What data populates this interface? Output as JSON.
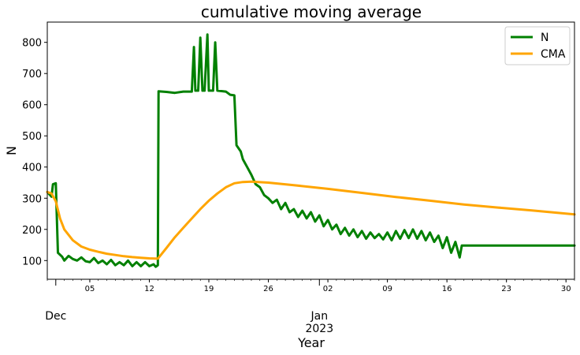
{
  "chart_data": {
    "type": "line",
    "title": "cumulative moving average",
    "xlabel": "Year",
    "ylabel": "N",
    "x_range": [
      "2022-11-30",
      "2023-01-31"
    ],
    "ylim": [
      40,
      865
    ],
    "grid": false,
    "legend_position": "top-right",
    "x_minor_ticks": [
      "05",
      "12",
      "19",
      "26",
      "02",
      "09",
      "16",
      "23",
      "30"
    ],
    "x_major_ticks": [
      {
        "line1": "Dec",
        "line2": ""
      },
      {
        "line1": "Jan",
        "line2": "2023"
      }
    ],
    "y_ticks": [
      "100",
      "200",
      "300",
      "400",
      "500",
      "600",
      "700",
      "800"
    ],
    "series": [
      {
        "name": "N",
        "color": "#008000",
        "points": [
          [
            "2022-11-30",
            320
          ],
          [
            "2022-11-30T12:00",
            305
          ],
          [
            "2022-11-30T16:00",
            345
          ],
          [
            "2022-12-01",
            348
          ],
          [
            "2022-12-01T06:00",
            125
          ],
          [
            "2022-12-01T18:00",
            112
          ],
          [
            "2022-12-02",
            100
          ],
          [
            "2022-12-02T12:00",
            115
          ],
          [
            "2022-12-03",
            105
          ],
          [
            "2022-12-03T12:00",
            100
          ],
          [
            "2022-12-04",
            110
          ],
          [
            "2022-12-04T12:00",
            98
          ],
          [
            "2022-12-05",
            95
          ],
          [
            "2022-12-05T12:00",
            108
          ],
          [
            "2022-12-06",
            92
          ],
          [
            "2022-12-06T12:00",
            100
          ],
          [
            "2022-12-07",
            88
          ],
          [
            "2022-12-07T12:00",
            102
          ],
          [
            "2022-12-08",
            85
          ],
          [
            "2022-12-08T12:00",
            95
          ],
          [
            "2022-12-09",
            85
          ],
          [
            "2022-12-09T12:00",
            100
          ],
          [
            "2022-12-10",
            82
          ],
          [
            "2022-12-10T12:00",
            95
          ],
          [
            "2022-12-11",
            82
          ],
          [
            "2022-12-11T12:00",
            95
          ],
          [
            "2022-12-12",
            82
          ],
          [
            "2022-12-12T12:00",
            88
          ],
          [
            "2022-12-12T18:00",
            80
          ],
          [
            "2022-12-13",
            85
          ],
          [
            "2022-12-13T02:00",
            643
          ],
          [
            "2022-12-14",
            641
          ],
          [
            "2022-12-15",
            638
          ],
          [
            "2022-12-16",
            642
          ],
          [
            "2022-12-17",
            642
          ],
          [
            "2022-12-17T06:00",
            785
          ],
          [
            "2022-12-17T10:00",
            645
          ],
          [
            "2022-12-17T18:00",
            645
          ],
          [
            "2022-12-18",
            815
          ],
          [
            "2022-12-18T06:00",
            645
          ],
          [
            "2022-12-18T12:00",
            645
          ],
          [
            "2022-12-18T20:00",
            825
          ],
          [
            "2022-12-19",
            645
          ],
          [
            "2022-12-19T12:00",
            645
          ],
          [
            "2022-12-19T18:00",
            800
          ],
          [
            "2022-12-20",
            645
          ],
          [
            "2022-12-21",
            642
          ],
          [
            "2022-12-21T12:00",
            632
          ],
          [
            "2022-12-22",
            630
          ],
          [
            "2022-12-22T06:00",
            470
          ],
          [
            "2022-12-22T18:00",
            450
          ],
          [
            "2022-12-23",
            425
          ],
          [
            "2022-12-23T12:00",
            400
          ],
          [
            "2022-12-24",
            375
          ],
          [
            "2022-12-24T12:00",
            345
          ],
          [
            "2022-12-25",
            335
          ],
          [
            "2022-12-25T12:00",
            310
          ],
          [
            "2022-12-26",
            300
          ],
          [
            "2022-12-26T12:00",
            285
          ],
          [
            "2022-12-27",
            295
          ],
          [
            "2022-12-27T12:00",
            265
          ],
          [
            "2022-12-28",
            285
          ],
          [
            "2022-12-28T12:00",
            255
          ],
          [
            "2022-12-29",
            265
          ],
          [
            "2022-12-29T12:00",
            240
          ],
          [
            "2022-12-30",
            260
          ],
          [
            "2022-12-30T12:00",
            235
          ],
          [
            "2022-12-31",
            255
          ],
          [
            "2022-12-31T12:00",
            225
          ],
          [
            "2023-01-01",
            245
          ],
          [
            "2023-01-01T12:00",
            210
          ],
          [
            "2023-01-02",
            230
          ],
          [
            "2023-01-02T12:00",
            200
          ],
          [
            "2023-01-03",
            215
          ],
          [
            "2023-01-03T12:00",
            185
          ],
          [
            "2023-01-04",
            205
          ],
          [
            "2023-01-04T12:00",
            180
          ],
          [
            "2023-01-05",
            200
          ],
          [
            "2023-01-05T12:00",
            175
          ],
          [
            "2023-01-06",
            195
          ],
          [
            "2023-01-06T12:00",
            170
          ],
          [
            "2023-01-07",
            190
          ],
          [
            "2023-01-07T12:00",
            172
          ],
          [
            "2023-01-08",
            185
          ],
          [
            "2023-01-08T12:00",
            168
          ],
          [
            "2023-01-09",
            190
          ],
          [
            "2023-01-09T12:00",
            165
          ],
          [
            "2023-01-10",
            195
          ],
          [
            "2023-01-10T12:00",
            170
          ],
          [
            "2023-01-11",
            198
          ],
          [
            "2023-01-11T12:00",
            172
          ],
          [
            "2023-01-12",
            200
          ],
          [
            "2023-01-12T12:00",
            170
          ],
          [
            "2023-01-13",
            195
          ],
          [
            "2023-01-13T12:00",
            165
          ],
          [
            "2023-01-14",
            190
          ],
          [
            "2023-01-14T12:00",
            160
          ],
          [
            "2023-01-15",
            180
          ],
          [
            "2023-01-15T12:00",
            140
          ],
          [
            "2023-01-16",
            175
          ],
          [
            "2023-01-16T12:00",
            125
          ],
          [
            "2023-01-17",
            160
          ],
          [
            "2023-01-17T12:00",
            110
          ],
          [
            "2023-01-17T18:00",
            148
          ],
          [
            "2023-01-18",
            148
          ],
          [
            "2023-01-31",
            148
          ]
        ]
      },
      {
        "name": "CMA",
        "color": "#ffa500",
        "points": [
          [
            "2022-11-30",
            320
          ],
          [
            "2022-11-30T12:00",
            315
          ],
          [
            "2022-12-01",
            290
          ],
          [
            "2022-12-01T12:00",
            235
          ],
          [
            "2022-12-02",
            200
          ],
          [
            "2022-12-03",
            165
          ],
          [
            "2022-12-04",
            145
          ],
          [
            "2022-12-05",
            135
          ],
          [
            "2022-12-06",
            128
          ],
          [
            "2022-12-07",
            122
          ],
          [
            "2022-12-08",
            118
          ],
          [
            "2022-12-09",
            114
          ],
          [
            "2022-12-10",
            111
          ],
          [
            "2022-12-11",
            109
          ],
          [
            "2022-12-12",
            107
          ],
          [
            "2022-12-13",
            106
          ],
          [
            "2022-12-14",
            140
          ],
          [
            "2022-12-15",
            175
          ],
          [
            "2022-12-16",
            205
          ],
          [
            "2022-12-17",
            235
          ],
          [
            "2022-12-18",
            265
          ],
          [
            "2022-12-19",
            292
          ],
          [
            "2022-12-20",
            315
          ],
          [
            "2022-12-21",
            335
          ],
          [
            "2022-12-22",
            348
          ],
          [
            "2022-12-23",
            352
          ],
          [
            "2022-12-24",
            353
          ],
          [
            "2022-12-26",
            350
          ],
          [
            "2022-12-29",
            342
          ],
          [
            "2023-01-02",
            330
          ],
          [
            "2023-01-06",
            317
          ],
          [
            "2023-01-10",
            304
          ],
          [
            "2023-01-14",
            292
          ],
          [
            "2023-01-18",
            280
          ],
          [
            "2023-01-22",
            270
          ],
          [
            "2023-01-26",
            261
          ],
          [
            "2023-01-31",
            248
          ]
        ]
      }
    ]
  }
}
